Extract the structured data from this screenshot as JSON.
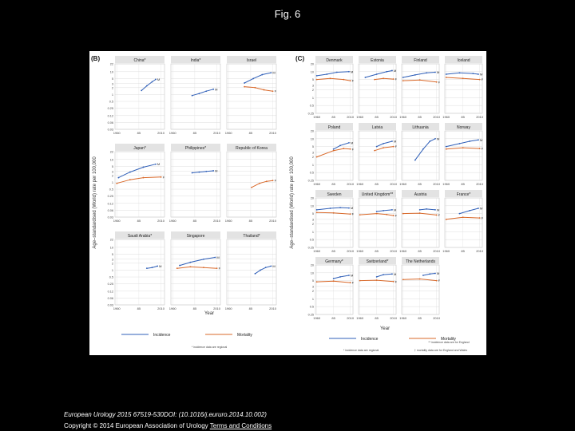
{
  "title": "Fig. 6",
  "citation": "European Urology 2015 67519-530DOI: (10.1016/j.eururo.2014.10.002)",
  "copyright": {
    "text": "Copyright © 2014 European Association of Urology",
    "link_label": "Terms and Conditions"
  },
  "colors": {
    "incidence": "#2f5fb8",
    "mortality": "#d9692a",
    "panel_header": "#e3e3e3",
    "grid": "#d6d6d6"
  },
  "chart_data": [
    {
      "type": "line",
      "panel_label": "(B)",
      "ylabel": "Age–standardised (World) rate per 100,000",
      "xlabel": "Year",
      "x_ticks": [
        "1960",
        "85",
        "2010"
      ],
      "y_ticks": [
        "22",
        "10",
        "5",
        "3",
        "2",
        "1",
        "0.5",
        "0.25",
        "0.12",
        "0.06",
        "0.03"
      ],
      "ylim": [
        0.03,
        22
      ],
      "xlim": [
        1958,
        2014
      ],
      "series_labels": {
        "male": "M",
        "both": "M",
        "female": "F"
      },
      "legend": {
        "incidence": "Incidence",
        "mortality": "Mortality",
        "note": "* incidence data are regional"
      },
      "panels": [
        {
          "name": "China*",
          "incidence": [
            {
              "x": 1988,
              "y": 1.5
            },
            {
              "x": 1994,
              "y": 2.4
            },
            {
              "x": 2000,
              "y": 3.6
            },
            {
              "x": 2004,
              "y": 4.6
            }
          ],
          "mortality": []
        },
        {
          "name": "India*",
          "incidence": [
            {
              "x": 1982,
              "y": 0.9
            },
            {
              "x": 1990,
              "y": 1.1
            },
            {
              "x": 1998,
              "y": 1.4
            },
            {
              "x": 2006,
              "y": 1.7
            }
          ],
          "mortality": []
        },
        {
          "name": "Israel",
          "incidence": [
            {
              "x": 1978,
              "y": 3.2
            },
            {
              "x": 1988,
              "y": 5.0
            },
            {
              "x": 1998,
              "y": 7.4
            },
            {
              "x": 2008,
              "y": 9.0
            }
          ],
          "mortality": [
            {
              "x": 1978,
              "y": 2.2
            },
            {
              "x": 1990,
              "y": 2.0
            },
            {
              "x": 2000,
              "y": 1.6
            },
            {
              "x": 2010,
              "y": 1.4
            }
          ]
        },
        {
          "name": "Japan*",
          "incidence": [
            {
              "x": 1962,
              "y": 1.6
            },
            {
              "x": 1975,
              "y": 2.8
            },
            {
              "x": 1990,
              "y": 4.6
            },
            {
              "x": 2004,
              "y": 6.2
            }
          ],
          "mortality": [
            {
              "x": 1960,
              "y": 0.9
            },
            {
              "x": 1975,
              "y": 1.3
            },
            {
              "x": 1990,
              "y": 1.6
            },
            {
              "x": 2010,
              "y": 1.7
            }
          ]
        },
        {
          "name": "Philippines*",
          "incidence": [
            {
              "x": 1982,
              "y": 2.6
            },
            {
              "x": 1990,
              "y": 2.8
            },
            {
              "x": 1998,
              "y": 3.0
            },
            {
              "x": 2006,
              "y": 3.2
            }
          ],
          "mortality": []
        },
        {
          "name": "Republic of Korea",
          "incidence": [],
          "mortality": [
            {
              "x": 1986,
              "y": 0.6
            },
            {
              "x": 1995,
              "y": 0.9
            },
            {
              "x": 2003,
              "y": 1.1
            },
            {
              "x": 2010,
              "y": 1.2
            }
          ]
        },
        {
          "name": "Saudi Arabia*",
          "incidence": [
            {
              "x": 1994,
              "y": 1.2
            },
            {
              "x": 2000,
              "y": 1.3
            },
            {
              "x": 2006,
              "y": 1.5
            }
          ],
          "mortality": []
        },
        {
          "name": "Singapore",
          "incidence": [
            {
              "x": 1968,
              "y": 1.6
            },
            {
              "x": 1980,
              "y": 2.2
            },
            {
              "x": 1995,
              "y": 3.0
            },
            {
              "x": 2008,
              "y": 3.6
            }
          ],
          "mortality": [
            {
              "x": 1965,
              "y": 1.2
            },
            {
              "x": 1980,
              "y": 1.4
            },
            {
              "x": 1995,
              "y": 1.3
            },
            {
              "x": 2010,
              "y": 1.2
            }
          ]
        },
        {
          "name": "Thailand*",
          "incidence": [
            {
              "x": 1990,
              "y": 0.7
            },
            {
              "x": 1996,
              "y": 1.0
            },
            {
              "x": 2002,
              "y": 1.3
            },
            {
              "x": 2008,
              "y": 1.5
            }
          ],
          "mortality": []
        }
      ]
    },
    {
      "type": "line",
      "panel_label": "(C)",
      "ylabel": "Age–standardised (World) rate per 100,000",
      "xlabel": "Year",
      "x_ticks": [
        "1960",
        "85",
        "2010"
      ],
      "y_ticks": [
        "20",
        "10",
        "5",
        "3",
        "2",
        "1",
        "0.5",
        "0.25"
      ],
      "ylim": [
        0.25,
        20
      ],
      "xlim": [
        1958,
        2014
      ],
      "legend": {
        "incidence": "Incidence",
        "mortality": "Mortality",
        "note_incidence": "* incidence data are regional",
        "note_mortality": "† mortality data are for England and Wales",
        "note_uk": "** incidence data are for England"
      },
      "panels": [
        {
          "name": "Denmark",
          "incidence": [
            {
              "x": 1960,
              "y": 7
            },
            {
              "x": 1975,
              "y": 8
            },
            {
              "x": 1990,
              "y": 9.5
            },
            {
              "x": 2008,
              "y": 10
            }
          ],
          "mortality": [
            {
              "x": 1960,
              "y": 5
            },
            {
              "x": 1980,
              "y": 5.5
            },
            {
              "x": 2000,
              "y": 5
            },
            {
              "x": 2010,
              "y": 4.5
            }
          ]
        },
        {
          "name": "Estonia",
          "incidence": [
            {
              "x": 1968,
              "y": 6
            },
            {
              "x": 1985,
              "y": 8
            },
            {
              "x": 2000,
              "y": 10
            },
            {
              "x": 2008,
              "y": 11
            }
          ],
          "mortality": [
            {
              "x": 1982,
              "y": 5
            },
            {
              "x": 1995,
              "y": 5.5
            },
            {
              "x": 2010,
              "y": 5.2
            }
          ]
        },
        {
          "name": "Finland",
          "incidence": [
            {
              "x": 1960,
              "y": 6
            },
            {
              "x": 1978,
              "y": 7.5
            },
            {
              "x": 1995,
              "y": 9
            },
            {
              "x": 2008,
              "y": 9.5
            }
          ],
          "mortality": [
            {
              "x": 1960,
              "y": 4.5
            },
            {
              "x": 1985,
              "y": 4.8
            },
            {
              "x": 2010,
              "y": 4
            }
          ]
        },
        {
          "name": "Iceland",
          "incidence": [
            {
              "x": 1960,
              "y": 8
            },
            {
              "x": 1980,
              "y": 9
            },
            {
              "x": 2000,
              "y": 8.5
            },
            {
              "x": 2008,
              "y": 8
            }
          ],
          "mortality": [
            {
              "x": 1960,
              "y": 6
            },
            {
              "x": 1985,
              "y": 5.5
            },
            {
              "x": 2010,
              "y": 5
            }
          ]
        },
        {
          "name": "Poland",
          "incidence": [
            {
              "x": 1985,
              "y": 4
            },
            {
              "x": 1995,
              "y": 5.5
            },
            {
              "x": 2008,
              "y": 7
            }
          ],
          "mortality": [
            {
              "x": 1960,
              "y": 2
            },
            {
              "x": 1985,
              "y": 3.5
            },
            {
              "x": 2000,
              "y": 4.2
            },
            {
              "x": 2010,
              "y": 4
            }
          ]
        },
        {
          "name": "Latvia",
          "incidence": [
            {
              "x": 1985,
              "y": 5
            },
            {
              "x": 1995,
              "y": 6.5
            },
            {
              "x": 2008,
              "y": 8
            }
          ],
          "mortality": [
            {
              "x": 1982,
              "y": 3.5
            },
            {
              "x": 1995,
              "y": 4.5
            },
            {
              "x": 2010,
              "y": 5
            }
          ]
        },
        {
          "name": "Lithuania",
          "incidence": [
            {
              "x": 1978,
              "y": 1.5
            },
            {
              "x": 1990,
              "y": 4
            },
            {
              "x": 2000,
              "y": 8
            },
            {
              "x": 2008,
              "y": 10
            }
          ],
          "mortality": []
        },
        {
          "name": "Norway",
          "incidence": [
            {
              "x": 1960,
              "y": 5
            },
            {
              "x": 1980,
              "y": 6.5
            },
            {
              "x": 1995,
              "y": 8
            },
            {
              "x": 2008,
              "y": 9
            }
          ],
          "mortality": [
            {
              "x": 1960,
              "y": 4
            },
            {
              "x": 1985,
              "y": 4.5
            },
            {
              "x": 2010,
              "y": 4.2
            }
          ]
        },
        {
          "name": "Sweden",
          "incidence": [
            {
              "x": 1960,
              "y": 7
            },
            {
              "x": 1980,
              "y": 8
            },
            {
              "x": 1995,
              "y": 8.5
            },
            {
              "x": 2008,
              "y": 8.2
            }
          ],
          "mortality": [
            {
              "x": 1960,
              "y": 5.5
            },
            {
              "x": 1985,
              "y": 5.3
            },
            {
              "x": 2010,
              "y": 4.8
            }
          ]
        },
        {
          "name": "United Kingdom**",
          "incidence": [
            {
              "x": 1985,
              "y": 6
            },
            {
              "x": 1995,
              "y": 6.5
            },
            {
              "x": 2008,
              "y": 7
            }
          ],
          "mortality": [
            {
              "x": 1960,
              "y": 4.5
            },
            {
              "x": 1985,
              "y": 5
            },
            {
              "x": 2000,
              "y": 4.6
            },
            {
              "x": 2010,
              "y": 4.2
            }
          ]
        },
        {
          "name": "Austria",
          "incidence": [
            {
              "x": 1985,
              "y": 7
            },
            {
              "x": 1995,
              "y": 7.5
            },
            {
              "x": 2008,
              "y": 7
            }
          ],
          "mortality": [
            {
              "x": 1960,
              "y": 5
            },
            {
              "x": 1985,
              "y": 5.2
            },
            {
              "x": 2010,
              "y": 4.4
            }
          ]
        },
        {
          "name": "France*",
          "incidence": [
            {
              "x": 1980,
              "y": 5
            },
            {
              "x": 1995,
              "y": 6.5
            },
            {
              "x": 2008,
              "y": 8
            }
          ],
          "mortality": [
            {
              "x": 1960,
              "y": 3
            },
            {
              "x": 1985,
              "y": 3.6
            },
            {
              "x": 2010,
              "y": 3.4
            }
          ]
        },
        {
          "name": "Germany*",
          "incidence": [
            {
              "x": 1985,
              "y": 6
            },
            {
              "x": 1995,
              "y": 7
            },
            {
              "x": 2008,
              "y": 8
            }
          ],
          "mortality": [
            {
              "x": 1960,
              "y": 4.5
            },
            {
              "x": 1985,
              "y": 4.8
            },
            {
              "x": 2010,
              "y": 4.2
            }
          ]
        },
        {
          "name": "Switzerland*",
          "incidence": [
            {
              "x": 1985,
              "y": 7
            },
            {
              "x": 1995,
              "y": 8.5
            },
            {
              "x": 2008,
              "y": 9
            }
          ],
          "mortality": [
            {
              "x": 1960,
              "y": 5
            },
            {
              "x": 1985,
              "y": 5.2
            },
            {
              "x": 2010,
              "y": 4.6
            }
          ]
        },
        {
          "name": "The Netherlands",
          "incidence": [
            {
              "x": 1990,
              "y": 8
            },
            {
              "x": 2000,
              "y": 9
            },
            {
              "x": 2008,
              "y": 9.5
            }
          ],
          "mortality": [
            {
              "x": 1960,
              "y": 5.5
            },
            {
              "x": 1985,
              "y": 5.8
            },
            {
              "x": 2010,
              "y": 5
            }
          ]
        }
      ]
    }
  ]
}
